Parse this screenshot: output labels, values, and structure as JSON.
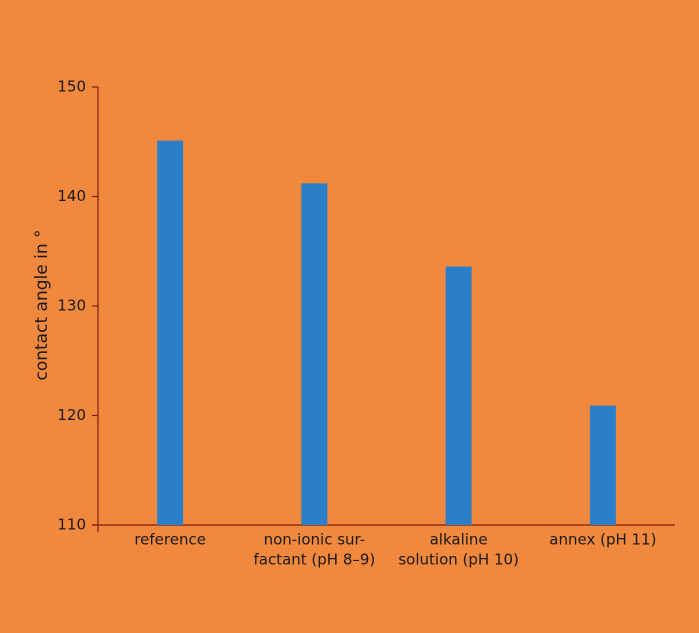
{
  "chart_data": {
    "type": "bar",
    "y_label": "contact angle in °",
    "categories": [
      [
        "reference"
      ],
      [
        "non-ionic sur-",
        "factant (pH 8–9)"
      ],
      [
        "alkaline",
        "solution (pH 10)"
      ],
      [
        "annex (pH 11)"
      ]
    ],
    "values": [
      145.1,
      141.2,
      133.6,
      120.9
    ],
    "color": "#2a7fc8",
    "ylim": [
      110,
      150
    ],
    "yticks": [
      110,
      120,
      130,
      140,
      150
    ],
    "grid": false
  }
}
